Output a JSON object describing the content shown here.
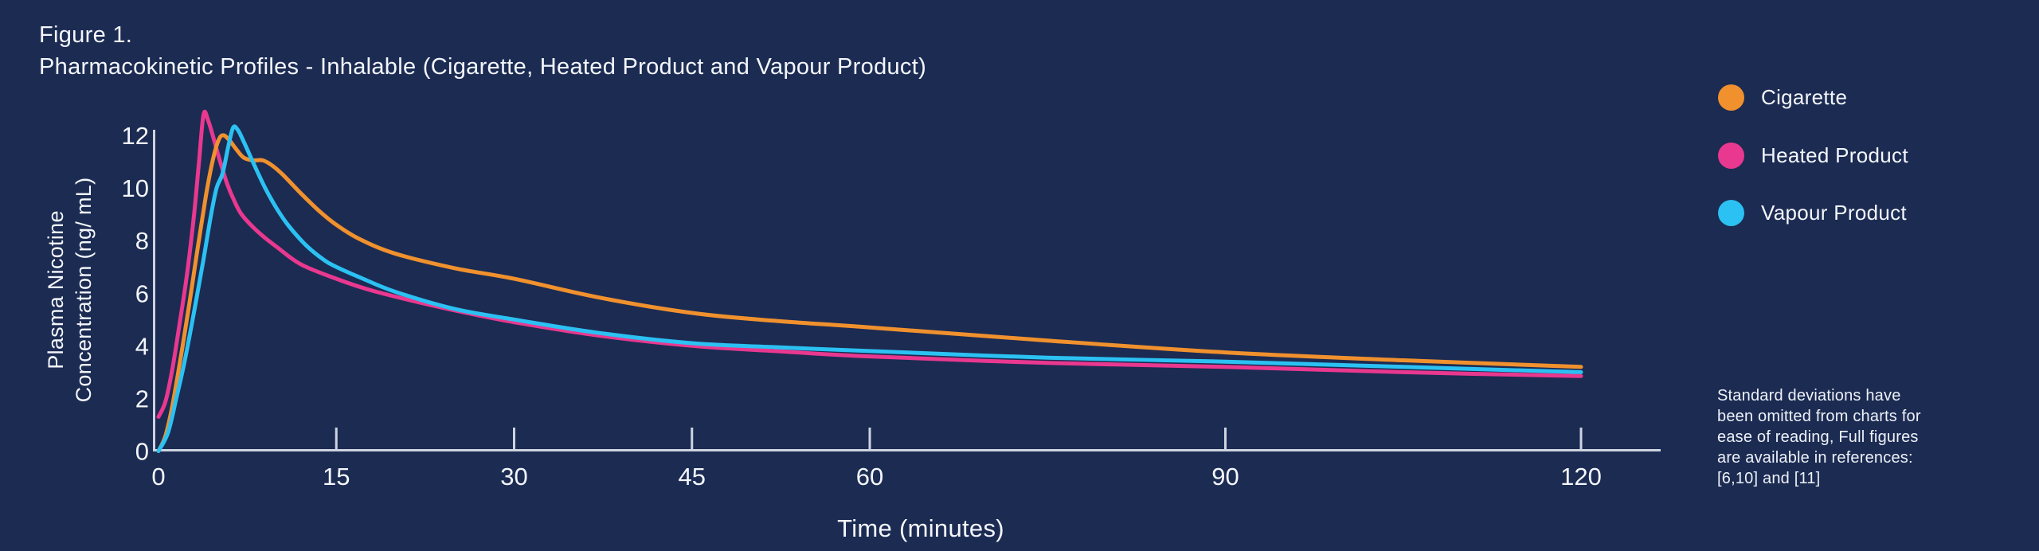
{
  "colors": {
    "background": "#1C2B52",
    "text": "#F3F6FB",
    "axis": "#CDD4E0",
    "cigarette": "#F0912E",
    "heated": "#E9388F",
    "vapour": "#2BC1F2"
  },
  "figure": {
    "label": "Figure 1.",
    "title": "Pharmacokinetic Profiles - Inhalable (Cigarette, Heated Product and Vapour Product)"
  },
  "legend": {
    "position": "right",
    "items": [
      {
        "label": "Cigarette",
        "color": "#F0912E"
      },
      {
        "label": "Heated Product",
        "color": "#E9388F"
      },
      {
        "label": "Vapour Product",
        "color": "#2BC1F2"
      }
    ]
  },
  "footnote": {
    "lines": [
      "Standard deviations have",
      "been omitted from charts for",
      "ease of reading, Full figures",
      "are available in references:",
      "[6,10] and [11]"
    ]
  },
  "chart_data": {
    "type": "line",
    "title": "Pharmacokinetic Profiles - Inhalable (Cigarette, Heated Product and Vapour Product)",
    "xlabel": "Time (minutes)",
    "ylabel": "Plasma Nicotine Concentration (ng/ mL)",
    "ylabel_lines": [
      "Plasma Nicotine",
      "Concentration (ng/ mL)"
    ],
    "xlim": [
      0,
      120
    ],
    "ylim": [
      0,
      12
    ],
    "xticks": [
      0,
      15,
      30,
      45,
      60,
      90,
      120
    ],
    "yticks": [
      0,
      2,
      4,
      6,
      8,
      10,
      12
    ],
    "grid": false,
    "legend_position": "right",
    "units": "ng/mL over minutes",
    "series": [
      {
        "name": "Heated Product",
        "color": "#E9388F",
        "points": [
          [
            0,
            1.3
          ],
          [
            0.6,
            1.9
          ],
          [
            1.2,
            3.2
          ],
          [
            1.8,
            4.9
          ],
          [
            2.4,
            6.7
          ],
          [
            3,
            9.0
          ],
          [
            3.4,
            10.9
          ],
          [
            3.8,
            12.8
          ],
          [
            4.2,
            12.55
          ],
          [
            4.7,
            11.8
          ],
          [
            5.2,
            11.0
          ],
          [
            5.8,
            10.15
          ],
          [
            6.4,
            9.5
          ],
          [
            7,
            9.0
          ],
          [
            8,
            8.5
          ],
          [
            9,
            8.1
          ],
          [
            10,
            7.75
          ],
          [
            12,
            7.1
          ],
          [
            15,
            6.55
          ],
          [
            18,
            6.1
          ],
          [
            22,
            5.65
          ],
          [
            26,
            5.25
          ],
          [
            30,
            4.9
          ],
          [
            37,
            4.4
          ],
          [
            45,
            4.0
          ],
          [
            52,
            3.8
          ],
          [
            60,
            3.6
          ],
          [
            75,
            3.35
          ],
          [
            90,
            3.2
          ],
          [
            105,
            3.0
          ],
          [
            120,
            2.85
          ]
        ]
      },
      {
        "name": "Cigarette",
        "color": "#F0912E",
        "points": [
          [
            0,
            0
          ],
          [
            0.6,
            0.6
          ],
          [
            1.2,
            1.8
          ],
          [
            2,
            3.9
          ],
          [
            2.6,
            5.6
          ],
          [
            3.2,
            7.4
          ],
          [
            4,
            9.7
          ],
          [
            4.6,
            11.1
          ],
          [
            5.1,
            11.85
          ],
          [
            5.5,
            12.0
          ],
          [
            6,
            11.8
          ],
          [
            6.6,
            11.45
          ],
          [
            7.2,
            11.15
          ],
          [
            8,
            11.05
          ],
          [
            8.8,
            11.05
          ],
          [
            9.6,
            10.85
          ],
          [
            10.5,
            10.5
          ],
          [
            12,
            9.8
          ],
          [
            13.5,
            9.15
          ],
          [
            15,
            8.6
          ],
          [
            17,
            8.05
          ],
          [
            20,
            7.5
          ],
          [
            25,
            6.95
          ],
          [
            30,
            6.55
          ],
          [
            37,
            5.85
          ],
          [
            45,
            5.25
          ],
          [
            52,
            4.95
          ],
          [
            60,
            4.7
          ],
          [
            75,
            4.2
          ],
          [
            90,
            3.75
          ],
          [
            105,
            3.45
          ],
          [
            120,
            3.2
          ]
        ]
      },
      {
        "name": "Vapour Product",
        "color": "#2BC1F2",
        "points": [
          [
            0,
            0
          ],
          [
            0.8,
            0.7
          ],
          [
            1.5,
            2.0
          ],
          [
            2.2,
            3.4
          ],
          [
            3,
            5.3
          ],
          [
            3.8,
            7.3
          ],
          [
            4.4,
            8.9
          ],
          [
            4.9,
            10.0
          ],
          [
            5.4,
            10.55
          ],
          [
            5.9,
            11.6
          ],
          [
            6.3,
            12.3
          ],
          [
            6.7,
            12.2
          ],
          [
            7.2,
            11.75
          ],
          [
            8,
            10.95
          ],
          [
            9,
            10.0
          ],
          [
            10,
            9.2
          ],
          [
            11,
            8.55
          ],
          [
            12.5,
            7.8
          ],
          [
            14,
            7.25
          ],
          [
            15,
            7.0
          ],
          [
            17,
            6.6
          ],
          [
            20,
            6.05
          ],
          [
            25,
            5.4
          ],
          [
            30,
            5.0
          ],
          [
            37,
            4.5
          ],
          [
            45,
            4.1
          ],
          [
            52,
            3.95
          ],
          [
            60,
            3.8
          ],
          [
            75,
            3.55
          ],
          [
            90,
            3.4
          ],
          [
            105,
            3.2
          ],
          [
            120,
            3.0
          ]
        ]
      }
    ]
  }
}
